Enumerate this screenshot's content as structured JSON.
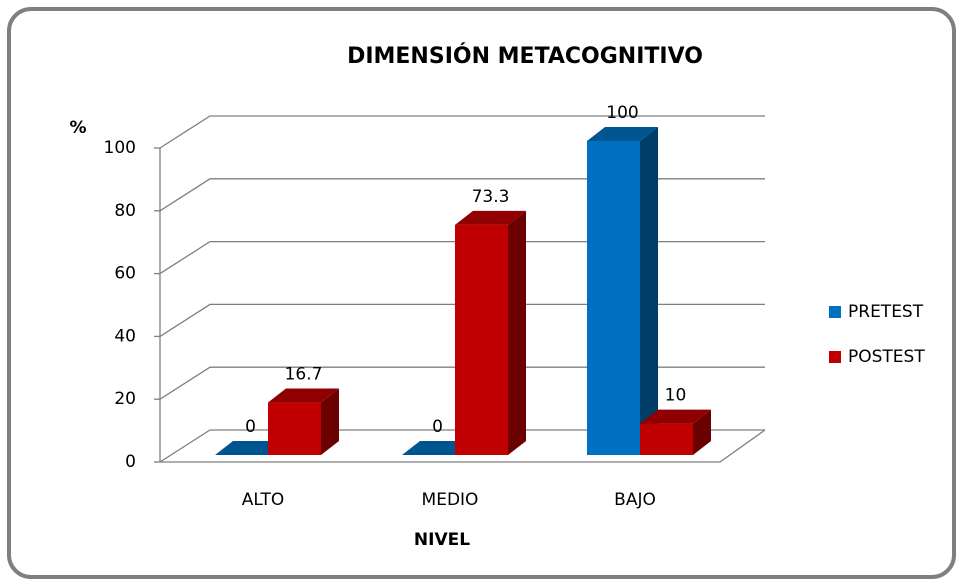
{
  "chart_data": {
    "type": "bar3d",
    "title": "DIMENSIÓN METACOGNITIVO",
    "y_label": "%",
    "x_label": "NIVEL",
    "categories": [
      "ALTO",
      "MEDIO",
      "BAJO"
    ],
    "series": [
      {
        "name": "PRETEST",
        "color": "#0070c0",
        "values": [
          0,
          0,
          100
        ]
      },
      {
        "name": "POSTEST",
        "color": "#c00000",
        "values": [
          16.7,
          73.3,
          10
        ]
      }
    ],
    "ylim": [
      0,
      100
    ],
    "yticks": [
      0,
      20,
      40,
      60,
      80,
      100
    ],
    "grid": true,
    "legend": "right"
  }
}
